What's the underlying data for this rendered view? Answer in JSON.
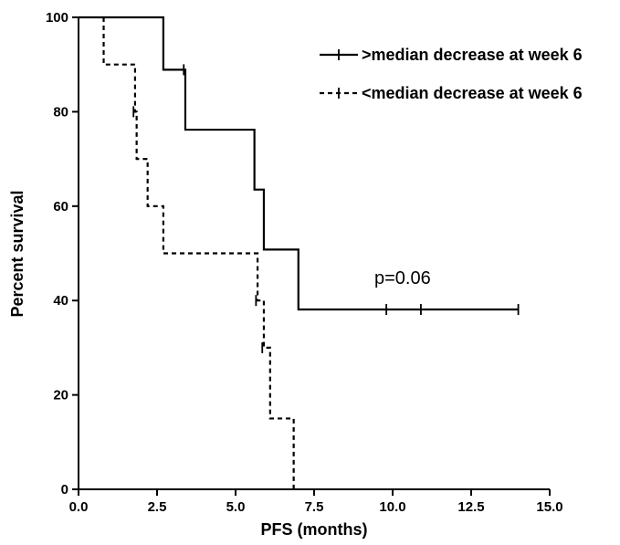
{
  "chart_data": {
    "type": "line",
    "xlabel": "PFS (months)",
    "ylabel": "Percent survival",
    "xlim": [
      0,
      15
    ],
    "ylim": [
      0,
      100
    ],
    "x_ticks": [
      0,
      2.5,
      5,
      7.5,
      10,
      12.5,
      15
    ],
    "x_tick_labels": [
      "0.0",
      "2.5",
      "5.0",
      "7.5",
      "10.0",
      "12.5",
      "15.0"
    ],
    "y_ticks": [
      0,
      20,
      40,
      60,
      80,
      100
    ],
    "y_tick_labels": [
      "0",
      "20",
      "40",
      "60",
      "80",
      "100"
    ],
    "grid": false,
    "legend_position": "top-right",
    "annotation": "p=0.06",
    "series": [
      {
        "name": ">median decrease at week 6",
        "style": "solid",
        "steps": [
          [
            0,
            100
          ],
          [
            2.7,
            88.9
          ],
          [
            3.4,
            76.2
          ],
          [
            5.6,
            63.5
          ],
          [
            5.9,
            50.8
          ],
          [
            7.0,
            38.1
          ]
        ],
        "end_x": 14.0,
        "censored": [
          [
            3.35,
            88.9
          ],
          [
            9.8,
            38.1
          ],
          [
            10.9,
            38.1
          ],
          [
            14.0,
            38.1
          ]
        ]
      },
      {
        "name": "<median decrease at week 6",
        "style": "dashed",
        "steps": [
          [
            0.8,
            100
          ],
          [
            0.8,
            90
          ],
          [
            1.8,
            80
          ],
          [
            1.85,
            70
          ],
          [
            2.2,
            60
          ],
          [
            2.7,
            50
          ],
          [
            5.7,
            40
          ],
          [
            5.9,
            30
          ],
          [
            6.1,
            15
          ],
          [
            6.85,
            0
          ]
        ],
        "end_x": 6.85,
        "censored": [
          [
            1.75,
            80
          ],
          [
            5.65,
            40
          ],
          [
            5.85,
            30
          ]
        ]
      }
    ]
  }
}
